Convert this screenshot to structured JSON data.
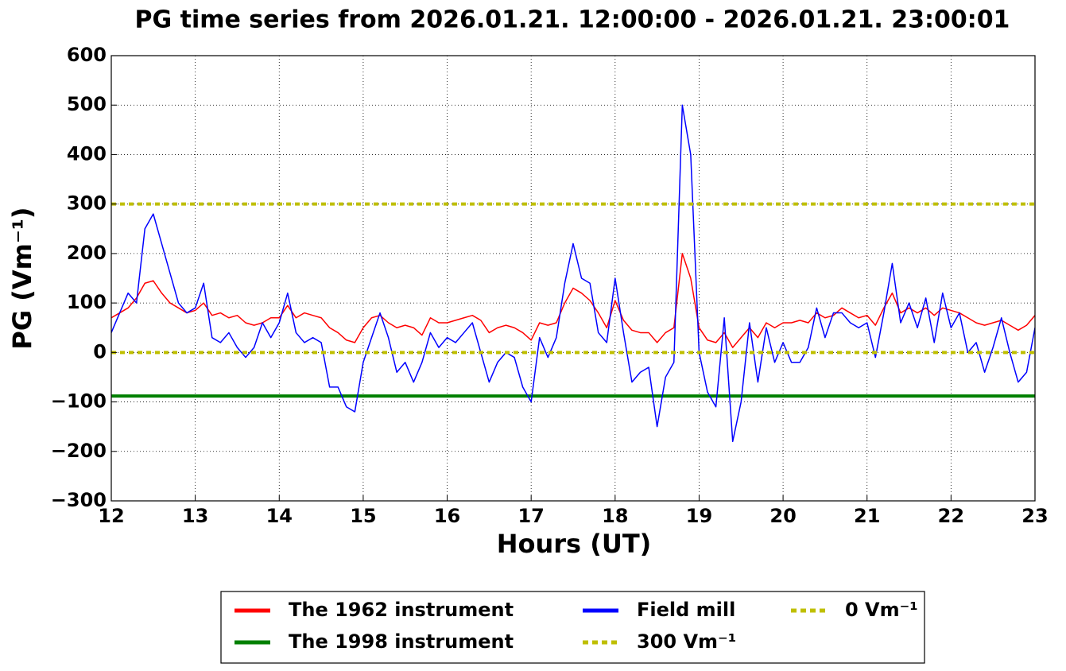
{
  "chart_data": {
    "type": "line",
    "title": "PG time series from 2026.01.21. 12:00:00 - 2026.01.21. 23:00:01",
    "xlabel": "Hours (UT)",
    "ylabel": "PG (Vm⁻¹)",
    "xlim": [
      12,
      23
    ],
    "ylim": [
      -300,
      600
    ],
    "xticks": [
      12,
      13,
      14,
      15,
      16,
      17,
      18,
      19,
      20,
      21,
      22,
      23
    ],
    "yticks": [
      {
        "value": -300,
        "label": "−300"
      },
      {
        "value": -200,
        "label": "−200"
      },
      {
        "value": -100,
        "label": "−100"
      },
      0,
      100,
      200,
      300,
      400,
      500,
      600
    ],
    "grid": true,
    "legend": "below",
    "x": [
      12.0,
      12.1,
      12.2,
      12.3,
      12.4,
      12.5,
      12.6,
      12.7,
      12.8,
      12.9,
      13.0,
      13.1,
      13.2,
      13.3,
      13.4,
      13.5,
      13.6,
      13.7,
      13.8,
      13.9,
      14.0,
      14.1,
      14.2,
      14.3,
      14.4,
      14.5,
      14.6,
      14.7,
      14.8,
      14.9,
      15.0,
      15.1,
      15.2,
      15.3,
      15.4,
      15.5,
      15.6,
      15.7,
      15.8,
      15.9,
      16.0,
      16.1,
      16.2,
      16.3,
      16.4,
      16.5,
      16.6,
      16.7,
      16.8,
      16.9,
      17.0,
      17.1,
      17.2,
      17.3,
      17.4,
      17.5,
      17.6,
      17.7,
      17.8,
      17.9,
      18.0,
      18.1,
      18.2,
      18.3,
      18.4,
      18.5,
      18.6,
      18.7,
      18.8,
      18.9,
      19.0,
      19.1,
      19.2,
      19.3,
      19.4,
      19.5,
      19.6,
      19.7,
      19.8,
      19.9,
      20.0,
      20.1,
      20.2,
      20.3,
      20.4,
      20.5,
      20.6,
      20.7,
      20.8,
      20.9,
      21.0,
      21.1,
      21.2,
      21.3,
      21.4,
      21.5,
      21.6,
      21.7,
      21.8,
      21.9,
      22.0,
      22.1,
      22.2,
      22.3,
      22.4,
      22.5,
      22.6,
      22.7,
      22.8,
      22.9,
      23.0
    ],
    "series": [
      {
        "name": "The 1962 instrument",
        "color": "#ff0000",
        "dashed": false,
        "values": [
          70,
          80,
          90,
          110,
          140,
          145,
          120,
          100,
          90,
          80,
          85,
          100,
          75,
          80,
          70,
          75,
          60,
          55,
          60,
          70,
          70,
          95,
          70,
          80,
          75,
          70,
          50,
          40,
          25,
          20,
          50,
          70,
          75,
          60,
          50,
          55,
          50,
          35,
          70,
          60,
          60,
          65,
          70,
          75,
          65,
          40,
          50,
          55,
          50,
          40,
          25,
          60,
          55,
          60,
          100,
          130,
          120,
          105,
          80,
          50,
          105,
          65,
          45,
          40,
          40,
          20,
          40,
          50,
          200,
          150,
          50,
          25,
          20,
          40,
          10,
          30,
          50,
          30,
          60,
          50,
          60,
          60,
          65,
          60,
          80,
          70,
          75,
          90,
          80,
          70,
          75,
          55,
          90,
          120,
          80,
          90,
          80,
          90,
          75,
          90,
          85,
          80,
          70,
          60,
          55,
          60,
          65,
          55,
          45,
          55,
          75
        ]
      },
      {
        "name": "The 1998 instrument",
        "color": "#008000",
        "dashed": false,
        "x": [
          12,
          23
        ],
        "values": [
          -88,
          -88
        ]
      },
      {
        "name": "Field mill",
        "color": "#0000ff",
        "dashed": false,
        "values": [
          40,
          80,
          120,
          100,
          250,
          280,
          220,
          160,
          100,
          80,
          90,
          140,
          30,
          20,
          40,
          10,
          -10,
          10,
          60,
          30,
          60,
          120,
          40,
          20,
          30,
          20,
          -70,
          -70,
          -110,
          -120,
          -20,
          30,
          80,
          30,
          -40,
          -20,
          -60,
          -20,
          40,
          10,
          30,
          20,
          40,
          60,
          0,
          -60,
          -20,
          0,
          -10,
          -70,
          -100,
          30,
          -10,
          30,
          140,
          220,
          150,
          140,
          40,
          20,
          150,
          40,
          -60,
          -40,
          -30,
          -150,
          -50,
          -20,
          500,
          400,
          0,
          -80,
          -110,
          70,
          -180,
          -100,
          60,
          -60,
          50,
          -20,
          20,
          -20,
          -20,
          10,
          90,
          30,
          80,
          80,
          60,
          50,
          60,
          -10,
          80,
          180,
          60,
          100,
          50,
          110,
          20,
          120,
          50,
          80,
          0,
          20,
          -40,
          10,
          70,
          0,
          -60,
          -40,
          50
        ]
      },
      {
        "name": "300 Vm⁻¹",
        "color": "#bfbf00",
        "dashed": true,
        "x": [
          12,
          23
        ],
        "values": [
          300,
          300
        ]
      },
      {
        "name": "0 Vm⁻¹",
        "color": "#bfbf00",
        "dashed": true,
        "x": [
          12,
          23
        ],
        "values": [
          0,
          0
        ]
      }
    ]
  }
}
